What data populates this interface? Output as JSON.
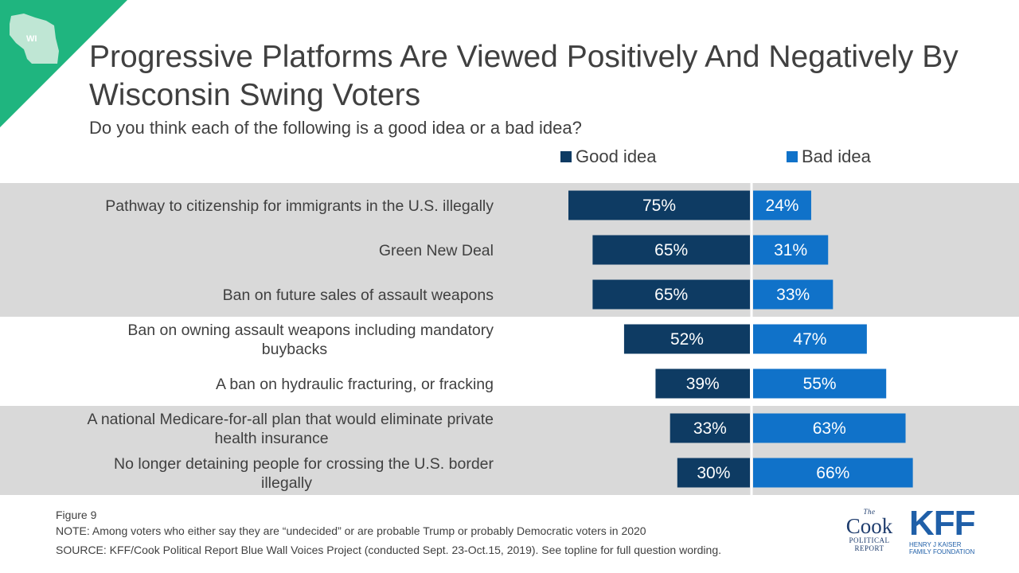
{
  "state_badge": "WI",
  "title": "Progressive Platforms Are Viewed Positively And Negatively By Wisconsin Swing Voters",
  "subtitle": "Do you think each of the following is a good idea or a bad idea?",
  "legend": {
    "good_label": "Good idea",
    "bad_label": "Bad idea"
  },
  "colors": {
    "good": "#0e3b63",
    "bad": "#1072c9",
    "band": "#d9d9d9",
    "corner": "#1fb57f",
    "title": "#404040"
  },
  "chart_data": {
    "type": "bar",
    "orientation": "horizontal-diverging",
    "categories": [
      "Pathway to citizenship for immigrants in the U.S. illegally",
      "Green New Deal",
      "Ban on future sales of assault weapons",
      "Ban on owning assault weapons including mandatory buybacks",
      "A ban on hydraulic fracturing, or fracking",
      "A national Medicare-for-all plan that would eliminate private health insurance",
      "No longer detaining people for crossing the U.S. border illegally"
    ],
    "category_lines": [
      [
        "Pathway to citizenship for immigrants in the U.S. illegally"
      ],
      [
        "Green New Deal"
      ],
      [
        "Ban on future sales of assault weapons"
      ],
      [
        "Ban on owning assault weapons including mandatory",
        "buybacks"
      ],
      [
        "A ban on hydraulic fracturing, or fracking"
      ],
      [
        "A national Medicare-for-all plan that would eliminate private",
        "health insurance"
      ],
      [
        "No longer detaining people for crossing the U.S. border",
        "illegally"
      ]
    ],
    "series": [
      {
        "name": "Good idea",
        "values": [
          75,
          65,
          65,
          52,
          39,
          33,
          30
        ],
        "labels": [
          "75%",
          "65%",
          "65%",
          "52%",
          "39%",
          "33%",
          "30%"
        ]
      },
      {
        "name": "Bad idea",
        "values": [
          24,
          31,
          33,
          47,
          55,
          63,
          66
        ],
        "labels": [
          "24%",
          "31%",
          "33%",
          "47%",
          "55%",
          "63%",
          "66%"
        ]
      }
    ],
    "shaded_groups": [
      [
        0,
        2
      ],
      [
        5,
        6
      ]
    ],
    "legend_position": "top"
  },
  "footer": {
    "figure": "Figure 9",
    "note": "NOTE: Among voters who either say they are “undecided” or are probable Trump or probably Democratic voters in 2020",
    "source": "SOURCE: KFF/Cook Political Report Blue Wall Voices Project (conducted Sept. 23-Oct.15, 2019). See topline for full question wording."
  },
  "logos": {
    "cook_the": "The",
    "cook_name": "Cook",
    "cook_line1": "POLITICAL",
    "cook_line2": "REPORT",
    "kff_name": "KFF",
    "kff_line1": "HENRY J KAISER",
    "kff_line2": "FAMILY FOUNDATION"
  }
}
